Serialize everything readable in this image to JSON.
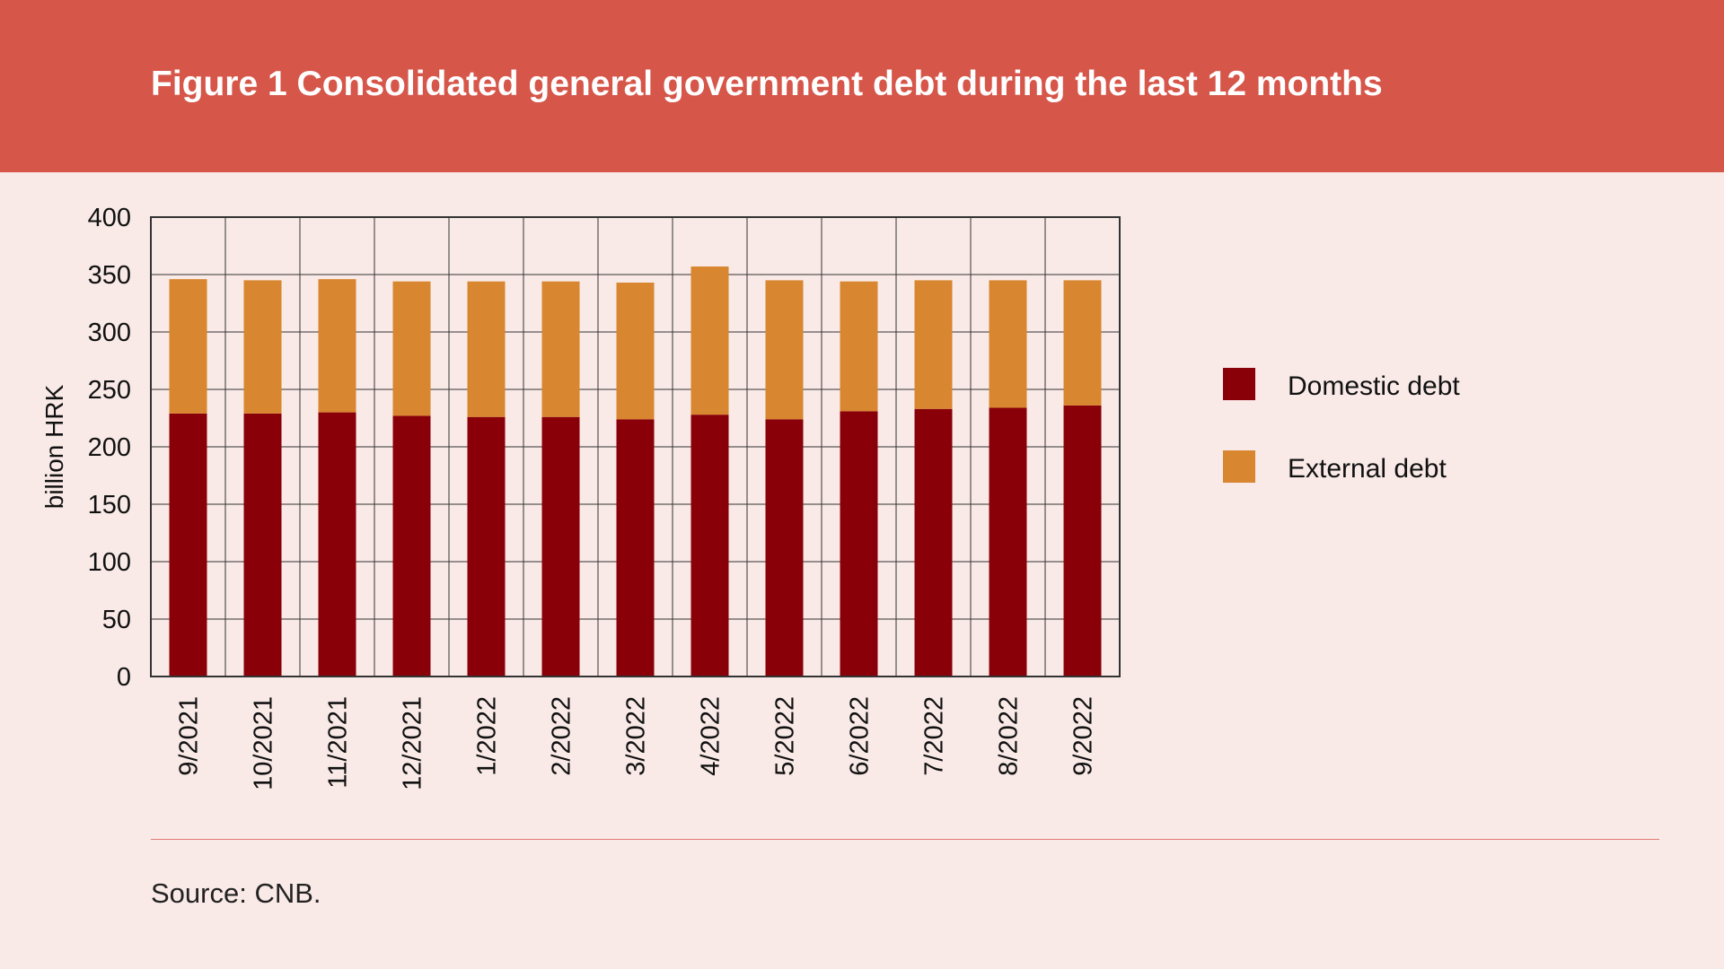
{
  "title": "Figure 1 Consolidated general government debt during the last 12 months",
  "source": "Source: CNB.",
  "colors": {
    "header": "#d6564a",
    "background": "#f9eae7",
    "domestic": "#8a0008",
    "external": "#d8862f"
  },
  "chart_data": {
    "type": "bar",
    "stacked": true,
    "categories": [
      "9/2021",
      "10/2021",
      "11/2021",
      "12/2021",
      "1/2022",
      "2/2022",
      "3/2022",
      "4/2022",
      "5/2022",
      "6/2022",
      "7/2022",
      "8/2022",
      "9/2022"
    ],
    "series": [
      {
        "name": "Domestic debt",
        "color": "#8a0008",
        "values": [
          229,
          229,
          230,
          227,
          226,
          226,
          224,
          228,
          224,
          231,
          233,
          234,
          236
        ]
      },
      {
        "name": "External debt",
        "color": "#d8862f",
        "values": [
          117,
          116,
          116,
          117,
          118,
          118,
          119,
          129,
          121,
          113,
          112,
          111,
          109
        ]
      }
    ],
    "ylabel": "billion HRK",
    "xlabel": "",
    "ylim": [
      0,
      400
    ],
    "yticks": [
      0,
      50,
      100,
      150,
      200,
      250,
      300,
      350,
      400
    ],
    "grid": true,
    "legend_position": "right"
  }
}
